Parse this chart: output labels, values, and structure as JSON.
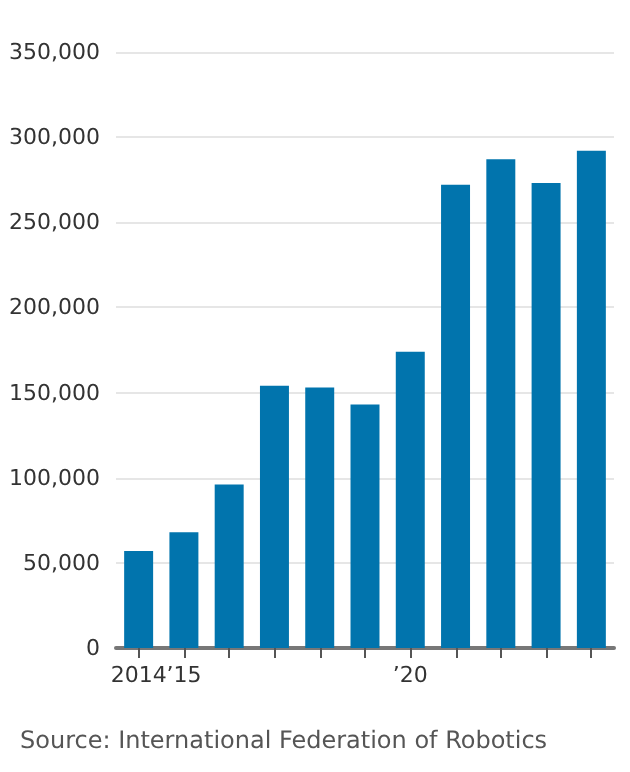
{
  "chart_data": {
    "type": "bar",
    "categories": [
      "2014",
      "’15",
      null,
      null,
      null,
      null,
      "’20",
      null,
      null,
      null,
      null
    ],
    "values": [
      57000,
      68000,
      96000,
      154000,
      153000,
      143000,
      174000,
      272000,
      287000,
      273000,
      292000
    ],
    "color": "#0174ad",
    "ylim": [
      0,
      350000
    ],
    "yticks": [
      0,
      {
        "value": 50000,
        "label": "50,000"
      },
      {
        "value": 100000,
        "label": "100,000"
      },
      {
        "value": 150000,
        "label": "150,000"
      },
      {
        "value": 200000,
        "label": "200,000"
      },
      {
        "value": 250000,
        "label": "250,000"
      },
      {
        "value": 300000,
        "label": "300,000"
      },
      {
        "value": 350000,
        "label": "350,000"
      }
    ],
    "grid": "y",
    "annotations": [
      "Source: International Federation of Robotics"
    ]
  }
}
